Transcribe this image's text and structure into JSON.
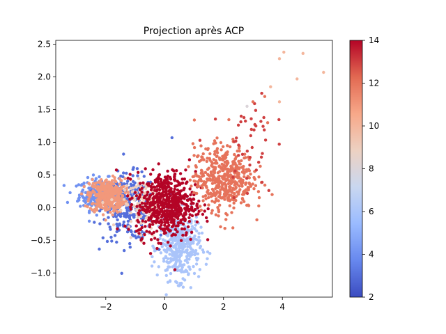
{
  "chart_data": {
    "type": "scatter",
    "title": "Projection après ACP",
    "xlabel": "",
    "ylabel": "",
    "xlim": [
      -3.7,
      5.7
    ],
    "ylim": [
      -1.37,
      2.56
    ],
    "xticks": [
      -2,
      0,
      2,
      4
    ],
    "xtick_labels": [
      "−2",
      "0",
      "2",
      "4"
    ],
    "yticks": [
      -1.0,
      -0.5,
      0.0,
      0.5,
      1.0,
      1.5,
      2.0,
      2.5
    ],
    "ytick_labels": [
      "−1.0",
      "−0.5",
      "0.0",
      "0.5",
      "1.0",
      "1.5",
      "2.0",
      "2.5"
    ],
    "colorbar": {
      "min": 2,
      "max": 14,
      "ticks": [
        2,
        4,
        6,
        8,
        10,
        12,
        14
      ],
      "tick_labels": [
        "2",
        "4",
        "6",
        "8",
        "10",
        "12",
        "14"
      ],
      "colormap": "coolwarm",
      "stops": [
        "#3b4cc0",
        "#6788ee",
        "#9abbff",
        "#c9d7f0",
        "#edd1c2",
        "#f7a889",
        "#e26952",
        "#b40426"
      ]
    },
    "series": [
      {
        "value": 4,
        "center": [
          -2.2,
          0.2
        ],
        "spread": [
          0.35,
          0.12
        ],
        "count": 280
      },
      {
        "value": 3,
        "center": [
          -1.2,
          0.0
        ],
        "spread": [
          0.45,
          0.25
        ],
        "count": 260
      },
      {
        "value": 11,
        "center": [
          -1.95,
          0.18
        ],
        "spread": [
          0.3,
          0.13
        ],
        "count": 380
      },
      {
        "value": 9,
        "center": [
          -0.6,
          0.05
        ],
        "spread": [
          0.4,
          0.18
        ],
        "count": 160
      },
      {
        "value": 6,
        "center": [
          0.5,
          -0.6
        ],
        "spread": [
          0.35,
          0.25
        ],
        "count": 380
      },
      {
        "value": 14,
        "center": [
          0.05,
          0.05
        ],
        "spread": [
          0.5,
          0.25
        ],
        "count": 620
      },
      {
        "value": 12,
        "center": [
          2.0,
          0.45
        ],
        "spread": [
          0.5,
          0.25
        ],
        "count": 480
      },
      {
        "value": 13,
        "center": [
          2.9,
          1.0
        ],
        "spread": [
          0.4,
          0.4
        ],
        "count": 40
      }
    ],
    "points_extra": [
      {
        "x": 3.4,
        "y": 1.7,
        "value": 12
      },
      {
        "x": 3.6,
        "y": 1.85,
        "value": 10
      },
      {
        "x": 3.9,
        "y": 1.62,
        "value": 10
      },
      {
        "x": 3.9,
        "y": 2.28,
        "value": 10
      },
      {
        "x": 4.05,
        "y": 2.38,
        "value": 10
      },
      {
        "x": 4.5,
        "y": 1.97,
        "value": 10
      },
      {
        "x": 4.7,
        "y": 2.36,
        "value": 10
      },
      {
        "x": 5.4,
        "y": 2.07,
        "value": 10
      },
      {
        "x": 2.8,
        "y": 1.55,
        "value": 8
      },
      {
        "x": 3.0,
        "y": 1.62,
        "value": 12
      },
      {
        "x": 3.3,
        "y": 1.75,
        "value": 13
      },
      {
        "x": 2.6,
        "y": 1.4,
        "value": 13
      },
      {
        "x": 3.5,
        "y": 1.3,
        "value": 12
      },
      {
        "x": 3.1,
        "y": 1.25,
        "value": 13
      },
      {
        "x": -3.3,
        "y": 0.08,
        "value": 4
      },
      {
        "x": 0.25,
        "y": 1.07,
        "value": 3
      },
      {
        "x": 0.35,
        "y": -0.95,
        "value": 14
      },
      {
        "x": 0.55,
        "y": -1.18,
        "value": 6
      },
      {
        "x": 1.2,
        "y": 1.03,
        "value": 13
      }
    ]
  }
}
